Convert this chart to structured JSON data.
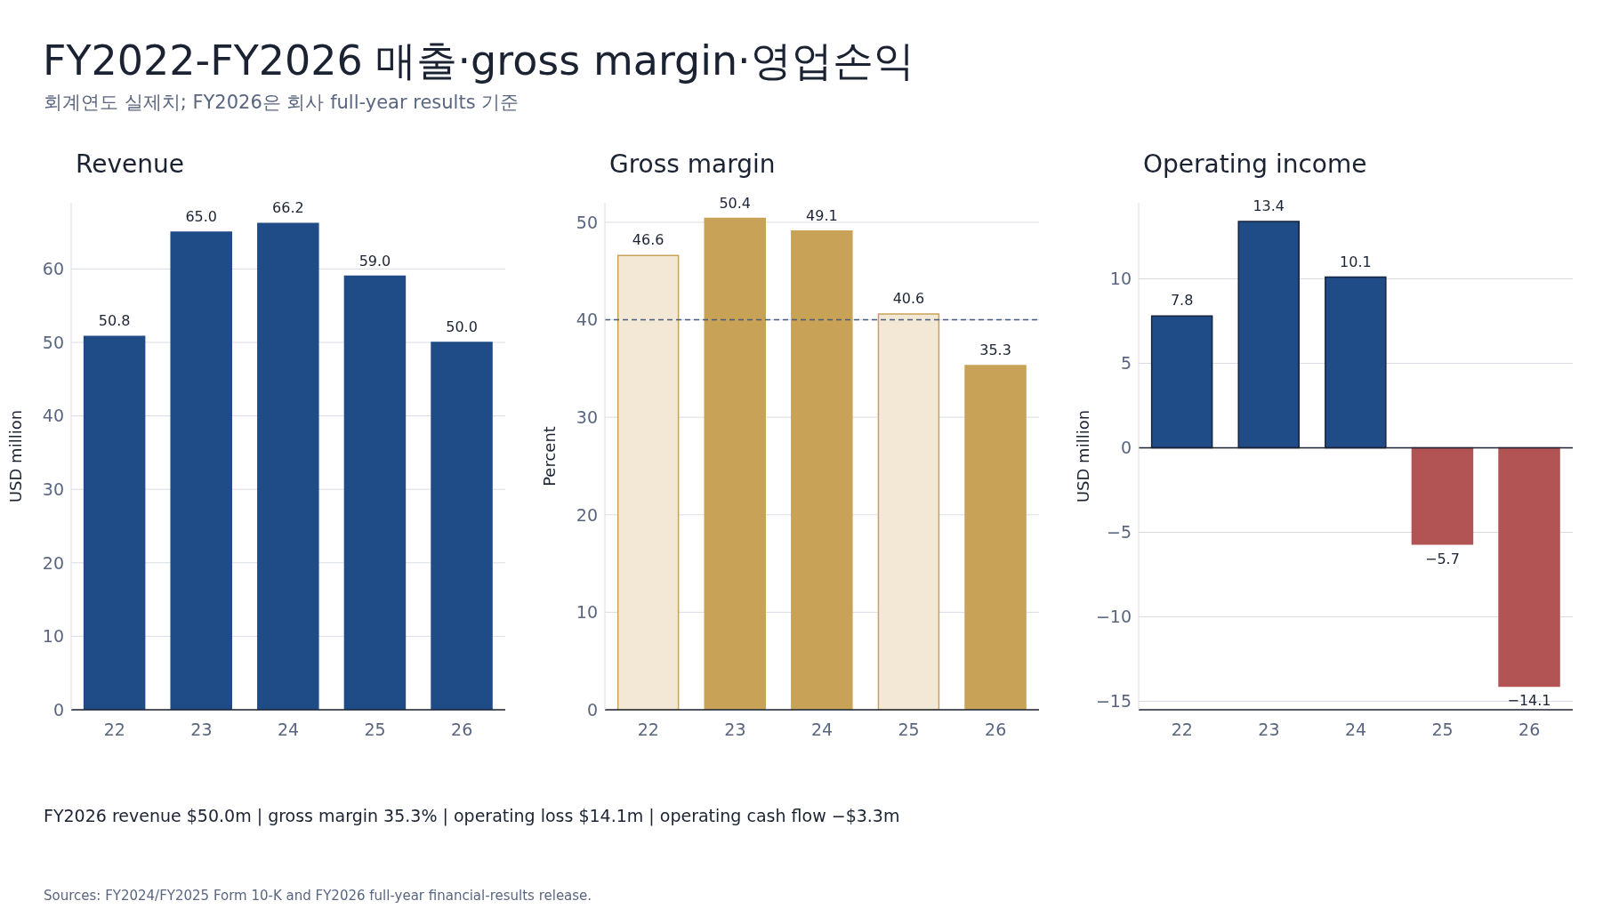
{
  "chart_data": [
    {
      "type": "other",
      "title": "FY2022-FY2026 매출·gross margin·영업손익",
      "subtitle": "회계연도 실제치; FY2026은 회사 full-year results 기준",
      "annotations": [
        "FY2026 revenue $50.0m | gross margin 35.3% | operating loss $14.1m | operating cash flow −$3.3m",
        "Sources: FY2024/FY2025 Form 10-K and FY2026 full-year financial-results release."
      ]
    },
    {
      "type": "bar",
      "title": "Revenue",
      "ylabel": "USD million",
      "categories": [
        "22",
        "23",
        "24",
        "25",
        "26"
      ],
      "values": [
        50.8,
        65.0,
        66.2,
        59.0,
        50.0
      ],
      "color": "#1f4b87",
      "ylim": [
        0,
        69
      ],
      "yticks": [
        0,
        10,
        20,
        30,
        40,
        50,
        60
      ],
      "grid": "y",
      "value_labels": [
        "50.8",
        "65.0",
        "66.2",
        "59.0",
        "50.0"
      ]
    },
    {
      "type": "bar",
      "title": "Gross margin",
      "ylabel": "Percent",
      "categories": [
        "22",
        "23",
        "24",
        "25",
        "26"
      ],
      "values": [
        46.6,
        50.4,
        49.1,
        40.6,
        35.3
      ],
      "color": "#c8a257",
      "colors": [
        "#f2e8d5",
        "#c8a257",
        "#c8a257",
        "#f2e8d5",
        "#c8a257"
      ],
      "ylim": [
        0,
        52
      ],
      "yticks": [
        0,
        10,
        20,
        30,
        40,
        50
      ],
      "grid": "y",
      "data_labels": true,
      "ref_lines": [
        {
          "axis": "y",
          "value": 40,
          "label": null,
          "color": "#4a5a7a",
          "line_style": "dashed"
        }
      ]
    },
    {
      "type": "bar",
      "title": "Operating income",
      "ylabel": "USD million",
      "categories": [
        "22",
        "23",
        "24",
        "25",
        "26"
      ],
      "values": [
        7.8,
        13.4,
        10.1,
        -5.7,
        -14.1
      ],
      "colors": [
        "#1f4b87",
        "#1f4b87",
        "#1f4b87",
        "#b35454",
        "#b35454"
      ],
      "ylim": [
        -15.5,
        14.5
      ],
      "yticks": [
        -15,
        -10,
        -5,
        0,
        5,
        10
      ],
      "grid": "y",
      "data_labels": true
    }
  ]
}
